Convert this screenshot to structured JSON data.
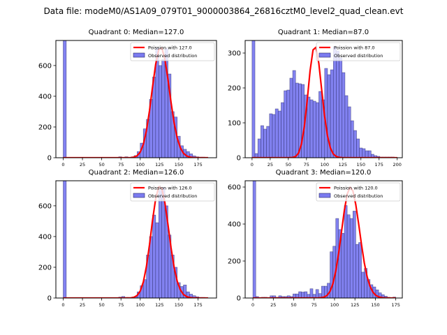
{
  "suptitle": "Data file: modeM0/AS1A09_079T01_9000003864_26816cztM0_level2_quad_clean.evt",
  "colors": {
    "bar_fill": "#7b7bf0",
    "bar_edge": "#2b2b66",
    "poisson": "#ff0000"
  },
  "chart_data": [
    {
      "type": "bar",
      "title": "Quadrant 0: Median=127.0",
      "xlim": [
        -9.5,
        199
      ],
      "ylim": [
        0,
        763
      ],
      "xticks": [
        0,
        25,
        50,
        75,
        100,
        125,
        150,
        175
      ],
      "yticks": [
        0,
        200,
        400,
        600
      ],
      "bin_width": 4,
      "legend": [
        "Poission with 127.0",
        "Observed distribution"
      ],
      "legend_position": "top-right",
      "median": 127.0,
      "poisson_peak": 720,
      "bins_start": [
        0,
        4,
        8,
        12,
        16,
        20,
        24,
        28,
        32,
        36,
        40,
        44,
        48,
        52,
        56,
        60,
        64,
        68,
        72,
        76,
        80,
        84,
        88,
        92,
        96,
        100,
        104,
        108,
        112,
        116,
        120,
        124,
        128,
        132,
        136,
        140,
        144,
        148,
        152,
        156,
        160,
        164,
        168,
        172,
        176,
        180,
        184
      ],
      "values": [
        900,
        0,
        0,
        0,
        0,
        0,
        0,
        0,
        0,
        0,
        0,
        0,
        0,
        0,
        0,
        2,
        2,
        1,
        6,
        2,
        6,
        2,
        6,
        14,
        40,
        95,
        188,
        250,
        380,
        525,
        715,
        600,
        640,
        710,
        545,
        300,
        265,
        140,
        78,
        55,
        40,
        25,
        12,
        6,
        4,
        4,
        2
      ]
    },
    {
      "type": "bar",
      "title": "Quadrant 1: Median=87.0",
      "xlim": [
        -9.5,
        207
      ],
      "ylim": [
        0,
        336
      ],
      "xticks": [
        0,
        25,
        50,
        75,
        100,
        125,
        150,
        175,
        200
      ],
      "yticks": [
        0,
        100,
        200,
        300
      ],
      "bin_width": 4,
      "legend": [
        "Poission with 87.0",
        "Observed distribution"
      ],
      "legend_position": "top-right",
      "median": 87.0,
      "poisson_peak": 320,
      "bins_start": [
        0,
        4,
        8,
        12,
        16,
        20,
        24,
        28,
        32,
        36,
        40,
        44,
        48,
        52,
        56,
        60,
        64,
        68,
        72,
        76,
        80,
        84,
        88,
        92,
        96,
        100,
        104,
        108,
        112,
        116,
        120,
        124,
        128,
        132,
        136,
        140,
        144,
        148,
        152,
        156,
        160,
        164,
        168,
        172,
        176,
        180,
        184,
        188,
        192,
        196
      ],
      "values": [
        500,
        12,
        54,
        92,
        82,
        90,
        126,
        124,
        140,
        134,
        158,
        192,
        194,
        228,
        250,
        214,
        212,
        210,
        180,
        174,
        166,
        162,
        158,
        190,
        166,
        256,
        238,
        252,
        318,
        306,
        286,
        244,
        178,
        146,
        106,
        78,
        54,
        28,
        26,
        20,
        20,
        10,
        6,
        4,
        2,
        2,
        2,
        2,
        2,
        1
      ]
    },
    {
      "type": "bar",
      "title": "Quadrant 2: Median=126.0",
      "xlim": [
        -9.5,
        199
      ],
      "ylim": [
        0,
        763
      ],
      "xticks": [
        0,
        25,
        50,
        75,
        100,
        125,
        150,
        175
      ],
      "yticks": [
        0,
        200,
        400,
        600
      ],
      "bin_width": 4,
      "legend": [
        "Poission with 126.0",
        "Observed distribution"
      ],
      "legend_position": "top-right",
      "median": 126.0,
      "poisson_peak": 730,
      "bins_start": [
        0,
        4,
        8,
        12,
        16,
        20,
        24,
        28,
        32,
        36,
        40,
        44,
        48,
        52,
        56,
        60,
        64,
        68,
        72,
        76,
        80,
        84,
        88,
        92,
        96,
        100,
        104,
        108,
        112,
        116,
        120,
        124,
        128,
        132,
        136,
        140,
        144,
        148,
        152,
        156,
        160,
        164,
        168,
        172,
        176,
        180,
        184
      ],
      "values": [
        900,
        0,
        0,
        0,
        0,
        0,
        0,
        0,
        0,
        0,
        0,
        0,
        0,
        0,
        0,
        2,
        2,
        1,
        6,
        10,
        4,
        2,
        4,
        8,
        40,
        80,
        120,
        280,
        400,
        540,
        490,
        700,
        720,
        600,
        410,
        280,
        200,
        100,
        75,
        85,
        40,
        25,
        15,
        8,
        4,
        4,
        2
      ]
    },
    {
      "type": "bar",
      "title": "Quadrant 3: Median=120.0",
      "xlim": [
        -9.5,
        183
      ],
      "ylim": [
        0,
        634
      ],
      "xticks": [
        0,
        25,
        50,
        75,
        100,
        125,
        150,
        175
      ],
      "yticks": [
        0,
        200,
        400,
        600
      ],
      "bin_width": 3.5,
      "legend": [
        "Poission with 120.0",
        "Observed distribution"
      ],
      "legend_position": "top-right",
      "median": 120.0,
      "poisson_peak": 600,
      "bins_start": [
        0,
        3.5,
        7,
        10.5,
        14,
        17.5,
        21,
        24.5,
        28,
        31.5,
        35,
        38.5,
        42,
        45.5,
        49,
        52.5,
        56,
        59.5,
        63,
        66.5,
        70,
        73.5,
        77,
        80.5,
        84,
        87.5,
        91,
        94.5,
        98,
        101.5,
        105,
        108.5,
        112,
        115.5,
        119,
        122.5,
        126,
        129.5,
        133,
        136.5,
        140,
        143.5,
        147,
        150.5,
        154,
        157.5,
        161,
        164.5,
        168,
        171.5
      ],
      "values": [
        640,
        8,
        2,
        4,
        4,
        2,
        12,
        12,
        4,
        12,
        8,
        8,
        12,
        8,
        22,
        22,
        34,
        32,
        34,
        20,
        50,
        20,
        46,
        24,
        64,
        64,
        80,
        250,
        280,
        430,
        370,
        350,
        500,
        450,
        430,
        470,
        290,
        300,
        140,
        160,
        100,
        72,
        60,
        44,
        28,
        18,
        10,
        4,
        2,
        5
      ]
    }
  ]
}
